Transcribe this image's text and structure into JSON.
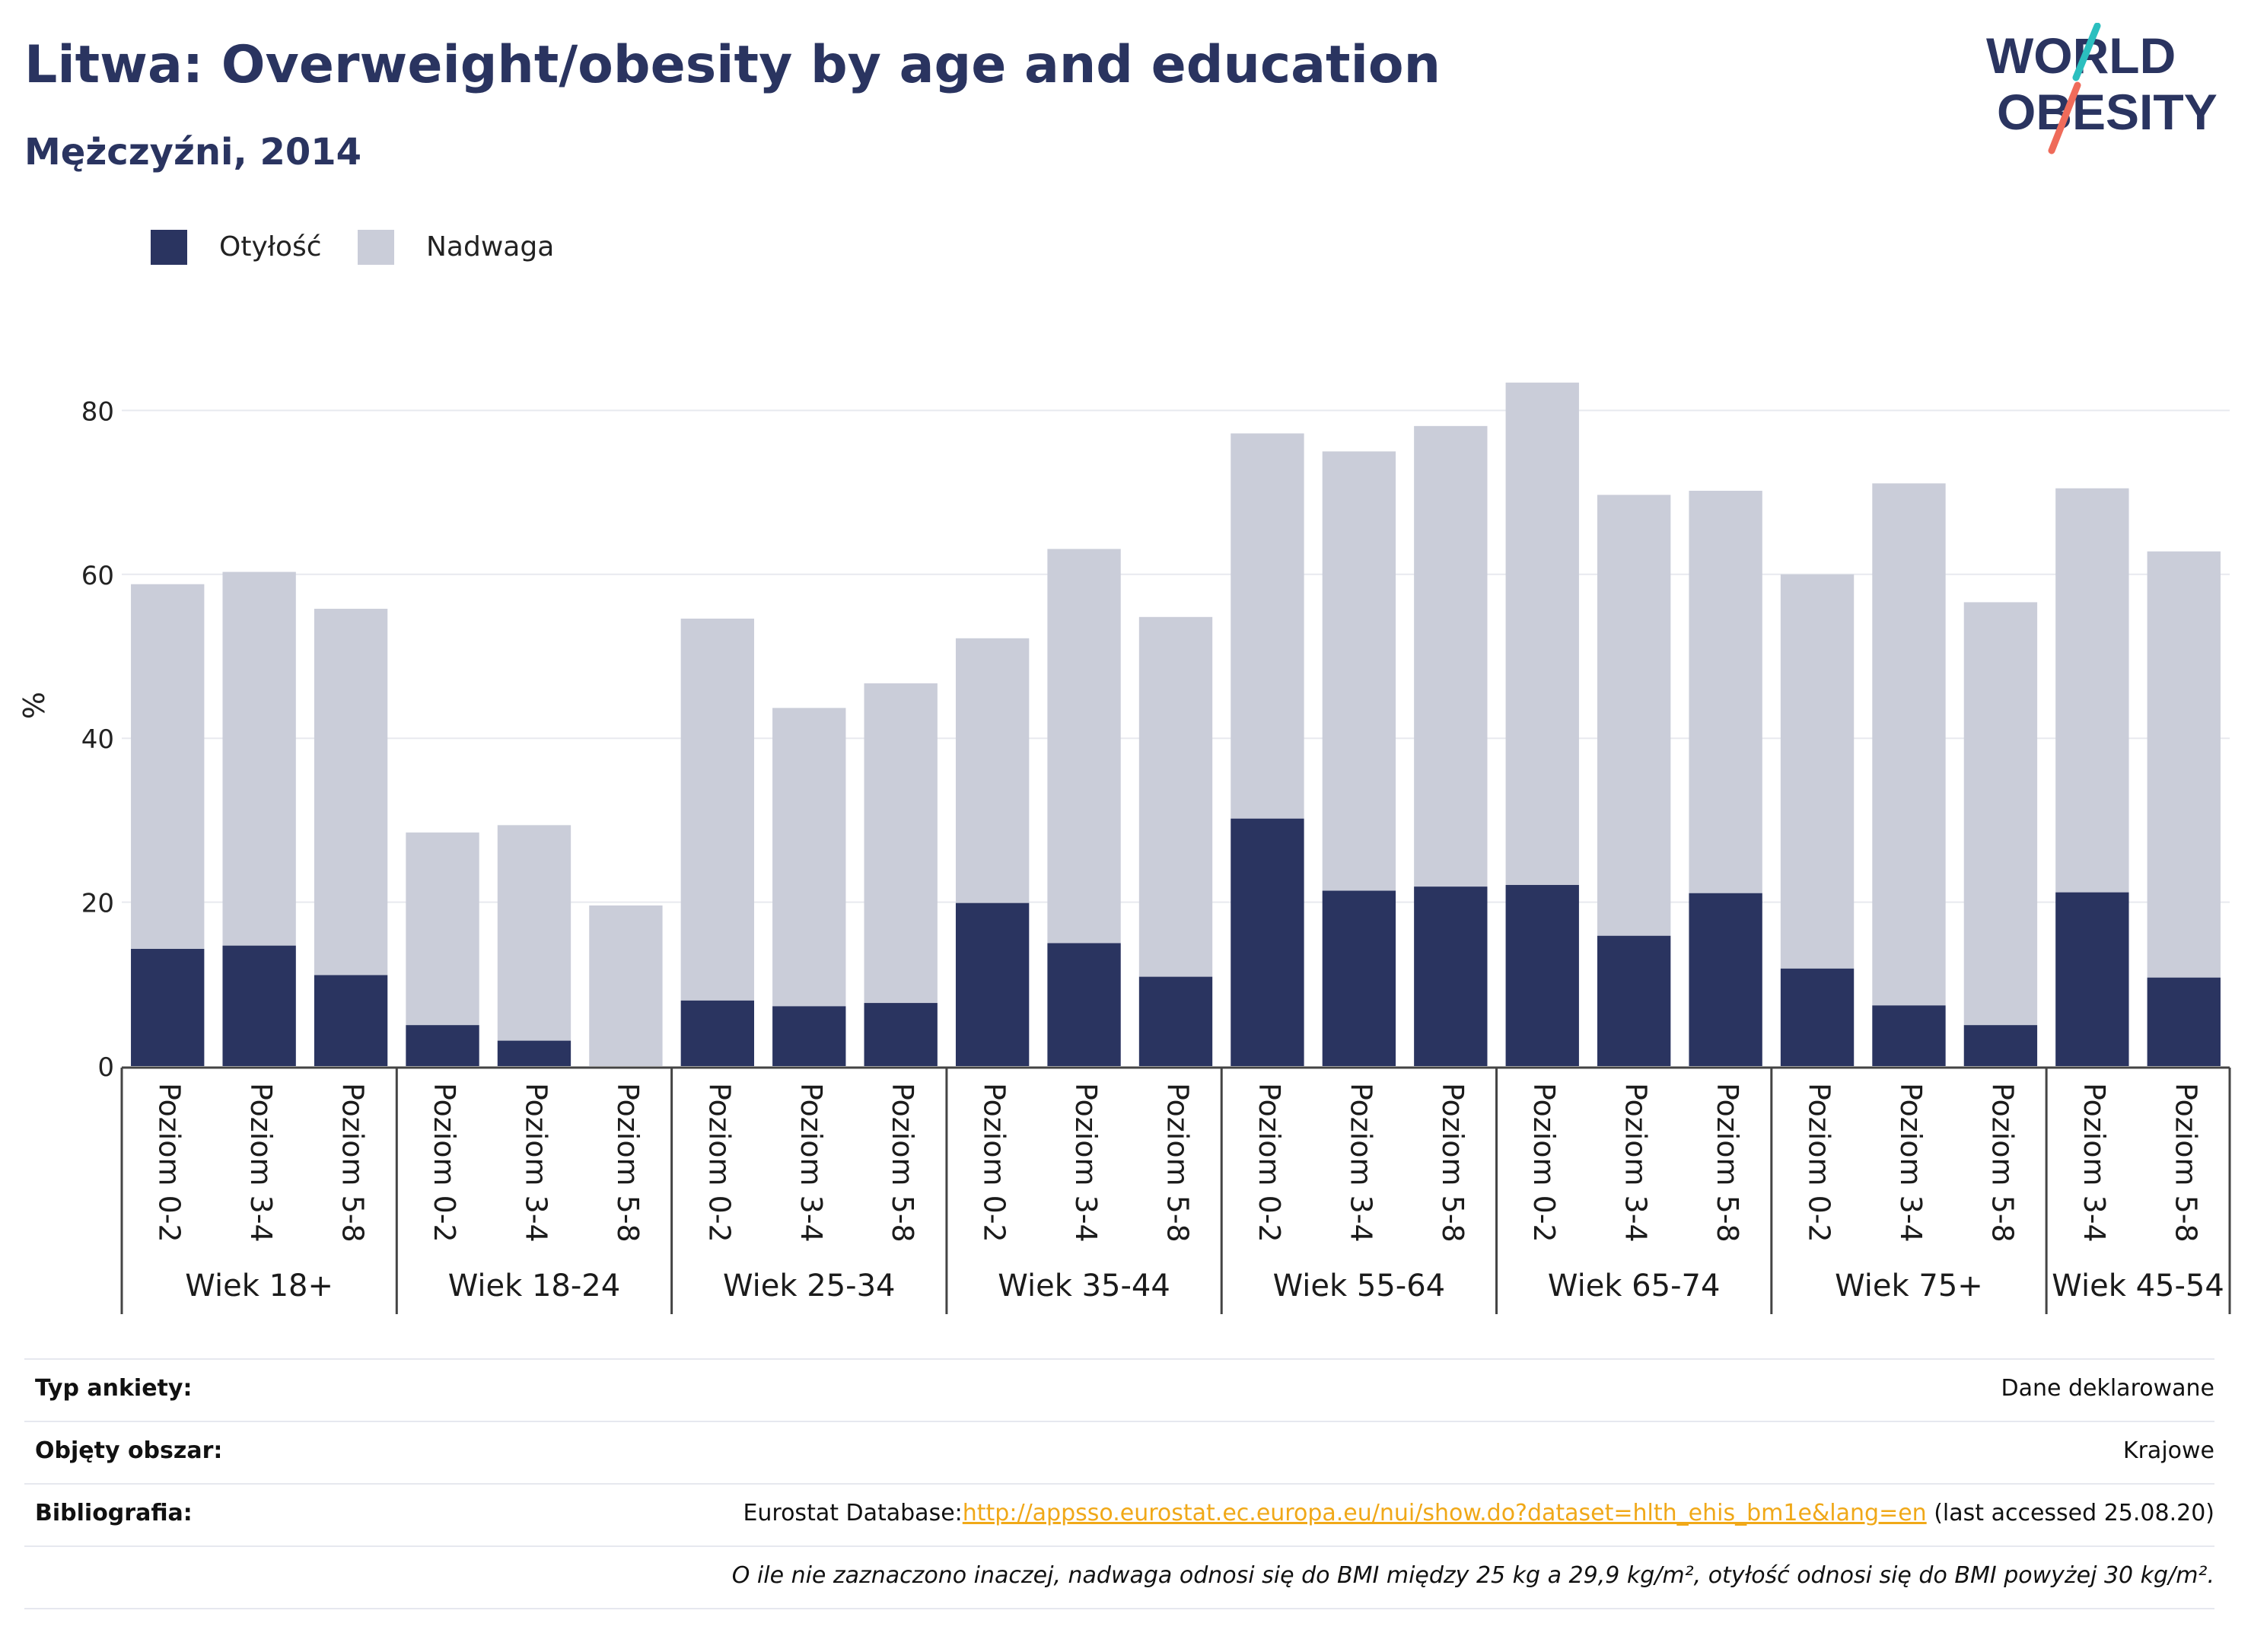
{
  "header": {
    "title": "Litwa: Overweight/obesity by age and education",
    "subtitle": "Mężczyźni, 2014"
  },
  "logo": {
    "line1": "WORLD",
    "line2": "OBESITY",
    "colors": {
      "text": "#2a3460",
      "slash_top": "#2bbfbf",
      "slash_bottom": "#ef6b5a"
    }
  },
  "legend": [
    {
      "label": "Otyłość",
      "color": "#2a3460"
    },
    {
      "label": "Nadwaga",
      "color": "#cacdd9"
    }
  ],
  "chart_data": {
    "type": "bar",
    "stacked": true,
    "ylabel": "%",
    "ylim": [
      0,
      88
    ],
    "yticks": [
      0,
      20,
      40,
      60,
      80
    ],
    "grid": true,
    "legend_position": "top-left",
    "groups": [
      {
        "label": "Wiek 18+",
        "categories": [
          "Poziom 0-2",
          "Poziom 3-4",
          "Poziom 5-8"
        ]
      },
      {
        "label": "Wiek 18-24",
        "categories": [
          "Poziom 0-2",
          "Poziom 3-4",
          "Poziom 5-8"
        ]
      },
      {
        "label": "Wiek 25-34",
        "categories": [
          "Poziom 0-2",
          "Poziom 3-4",
          "Poziom 5-8"
        ]
      },
      {
        "label": "Wiek 35-44",
        "categories": [
          "Poziom 0-2",
          "Poziom 3-4",
          "Poziom 5-8"
        ]
      },
      {
        "label": "Wiek 55-64",
        "categories": [
          "Poziom 0-2",
          "Poziom 3-4",
          "Poziom 5-8"
        ]
      },
      {
        "label": "Wiek 65-74",
        "categories": [
          "Poziom 0-2",
          "Poziom 3-4",
          "Poziom 5-8"
        ]
      },
      {
        "label": "Wiek 75+",
        "categories": [
          "Poziom 0-2",
          "Poziom 3-4",
          "Poziom 5-8"
        ]
      },
      {
        "label": "Wiek 45-54",
        "categories": [
          "Poziom 3-4",
          "Poziom 5-8"
        ]
      }
    ],
    "series": [
      {
        "name": "Otyłość",
        "color": "#2a3460",
        "values": [
          14.3,
          14.7,
          11.1,
          5.0,
          3.1,
          0.0,
          8.0,
          7.3,
          7.7,
          19.9,
          15.0,
          10.9,
          30.2,
          21.4,
          21.9,
          22.1,
          15.9,
          21.1,
          11.9,
          7.4,
          5.0,
          21.2,
          10.8
        ]
      },
      {
        "name": "Nadwaga",
        "color": "#cacdd9",
        "values": [
          44.5,
          45.6,
          44.7,
          23.5,
          26.3,
          19.6,
          46.6,
          36.4,
          39.0,
          32.3,
          48.1,
          43.9,
          47.0,
          53.6,
          56.2,
          61.3,
          53.8,
          49.1,
          48.1,
          63.7,
          51.6,
          49.3,
          52.0
        ]
      }
    ]
  },
  "meta": [
    {
      "key": "Typ ankiety:",
      "value": "Dane deklarowane"
    },
    {
      "key": "Objęty obszar:",
      "value": "Krajowe"
    },
    {
      "key": "Bibliografia:",
      "prefix": "Eurostat Database:",
      "link": "http://appsso.eurostat.ec.europa.eu/nui/show.do?dataset=hlth_ehis_bm1e&lang=en",
      "suffix": " (last accessed 25.08.20)"
    },
    {
      "key": "",
      "note": "O ile nie zaznaczono inaczej, nadwaga odnosi się do BMI między 25 kg a 29,9 kg/m², otyłość odnosi się do BMI powyżej 30 kg/m²."
    }
  ]
}
